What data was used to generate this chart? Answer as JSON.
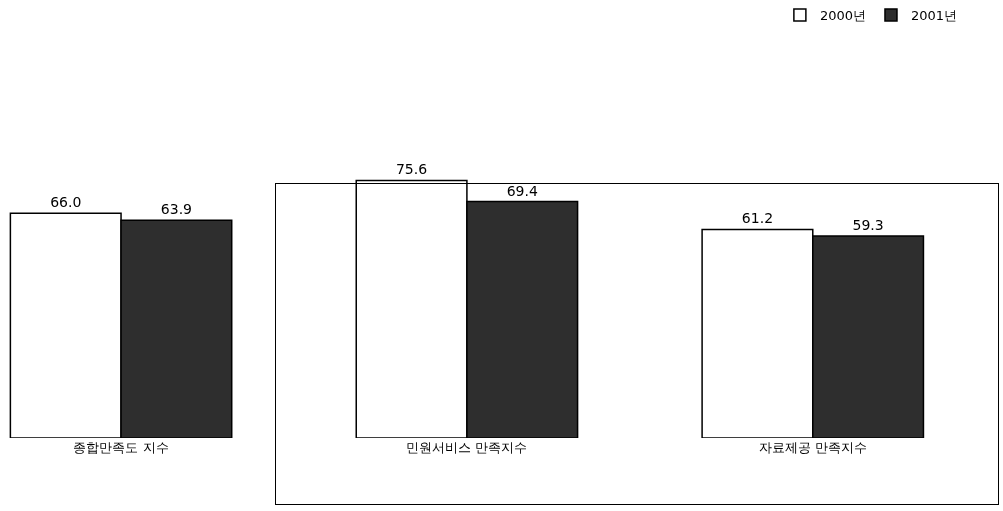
{
  "chart_data": {
    "type": "bar",
    "categories": [
      "종합만족도 지수",
      "민원서비스 만족지수",
      "자료제공 만족지수"
    ],
    "series": [
      {
        "name": "2000년",
        "color": "#ffffff",
        "values": [
          66.0,
          75.6,
          61.2
        ],
        "value_labels": [
          "66.0",
          "75.6",
          "61.2"
        ]
      },
      {
        "name": "2001년",
        "color": "#2e2e2e",
        "values": [
          63.9,
          69.4,
          59.3
        ],
        "value_labels": [
          "63.9",
          "69.4",
          "59.3"
        ]
      }
    ],
    "legend": "top right"
  }
}
